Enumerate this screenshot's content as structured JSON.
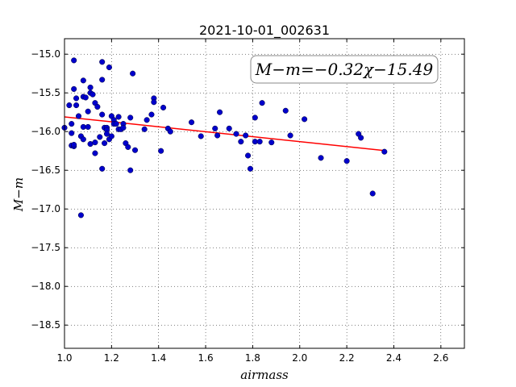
{
  "chart_data": {
    "type": "scatter",
    "title": "2021-10-01_002631",
    "xlabel": "airmass",
    "ylabel": "M−m",
    "xlim": [
      1.0,
      2.7
    ],
    "ylim": [
      -18.8,
      -14.8
    ],
    "y_inverted": true,
    "grid": true,
    "x_ticks": [
      "1.0",
      "1.2",
      "1.4",
      "1.6",
      "1.8",
      "2.0",
      "2.2",
      "2.4",
      "2.6"
    ],
    "y_ticks": [
      "−15.0",
      "−15.5",
      "−16.0",
      "−16.5",
      "−17.0",
      "−17.5",
      "−18.0",
      "−18.5"
    ],
    "annotation": "M−m=−0.32χ−15.49",
    "colors": {
      "points": "#0000cc",
      "fit_line": "#ff0000"
    },
    "fit": {
      "slope": -0.32,
      "intercept": -15.49,
      "x_range": [
        1.0,
        2.36
      ]
    },
    "points": [
      [
        1.0,
        -15.95
      ],
      [
        1.02,
        -15.66
      ],
      [
        1.03,
        -15.9
      ],
      [
        1.03,
        -16.02
      ],
      [
        1.03,
        -16.18
      ],
      [
        1.04,
        -16.19
      ],
      [
        1.04,
        -16.17
      ],
      [
        1.04,
        -15.45
      ],
      [
        1.04,
        -15.08
      ],
      [
        1.05,
        -15.57
      ],
      [
        1.05,
        -15.66
      ],
      [
        1.06,
        -15.8
      ],
      [
        1.07,
        -17.08
      ],
      [
        1.07,
        -16.06
      ],
      [
        1.08,
        -15.34
      ],
      [
        1.08,
        -15.55
      ],
      [
        1.08,
        -15.94
      ],
      [
        1.08,
        -16.1
      ],
      [
        1.09,
        -15.56
      ],
      [
        1.1,
        -15.74
      ],
      [
        1.1,
        -15.94
      ],
      [
        1.11,
        -15.43
      ],
      [
        1.11,
        -15.5
      ],
      [
        1.11,
        -16.16
      ],
      [
        1.12,
        -15.52
      ],
      [
        1.13,
        -15.63
      ],
      [
        1.13,
        -16.14
      ],
      [
        1.13,
        -16.28
      ],
      [
        1.14,
        -15.68
      ],
      [
        1.15,
        -16.07
      ],
      [
        1.16,
        -15.1
      ],
      [
        1.16,
        -15.33
      ],
      [
        1.16,
        -15.78
      ],
      [
        1.16,
        -16.48
      ],
      [
        1.17,
        -15.95
      ],
      [
        1.17,
        -16.15
      ],
      [
        1.18,
        -15.95
      ],
      [
        1.18,
        -15.98
      ],
      [
        1.18,
        -16.03
      ],
      [
        1.19,
        -15.17
      ],
      [
        1.19,
        -16.1
      ],
      [
        1.2,
        -15.8
      ],
      [
        1.2,
        -16.06
      ],
      [
        1.21,
        -15.85
      ],
      [
        1.21,
        -15.9
      ],
      [
        1.22,
        -15.9
      ],
      [
        1.23,
        -15.81
      ],
      [
        1.23,
        -15.97
      ],
      [
        1.24,
        -15.97
      ],
      [
        1.25,
        -15.9
      ],
      [
        1.25,
        -15.95
      ],
      [
        1.26,
        -16.15
      ],
      [
        1.27,
        -16.2
      ],
      [
        1.28,
        -16.5
      ],
      [
        1.28,
        -15.82
      ],
      [
        1.29,
        -15.25
      ],
      [
        1.3,
        -16.24
      ],
      [
        1.34,
        -15.97
      ],
      [
        1.35,
        -15.85
      ],
      [
        1.37,
        -15.78
      ],
      [
        1.38,
        -15.57
      ],
      [
        1.38,
        -15.62
      ],
      [
        1.41,
        -16.25
      ],
      [
        1.42,
        -15.69
      ],
      [
        1.44,
        -15.96
      ],
      [
        1.45,
        -16.0
      ],
      [
        1.54,
        -15.88
      ],
      [
        1.58,
        -16.06
      ],
      [
        1.64,
        -15.96
      ],
      [
        1.65,
        -16.05
      ],
      [
        1.66,
        -15.75
      ],
      [
        1.7,
        -15.96
      ],
      [
        1.73,
        -16.03
      ],
      [
        1.75,
        -16.13
      ],
      [
        1.77,
        -16.05
      ],
      [
        1.78,
        -16.31
      ],
      [
        1.79,
        -16.48
      ],
      [
        1.81,
        -15.82
      ],
      [
        1.81,
        -16.13
      ],
      [
        1.83,
        -16.13
      ],
      [
        1.84,
        -15.63
      ],
      [
        1.88,
        -16.14
      ],
      [
        1.94,
        -15.73
      ],
      [
        1.96,
        -16.05
      ],
      [
        2.02,
        -15.84
      ],
      [
        2.09,
        -16.34
      ],
      [
        2.2,
        -16.38
      ],
      [
        2.25,
        -16.03
      ],
      [
        2.26,
        -16.08
      ],
      [
        2.31,
        -16.8
      ],
      [
        2.36,
        -16.26
      ]
    ]
  }
}
